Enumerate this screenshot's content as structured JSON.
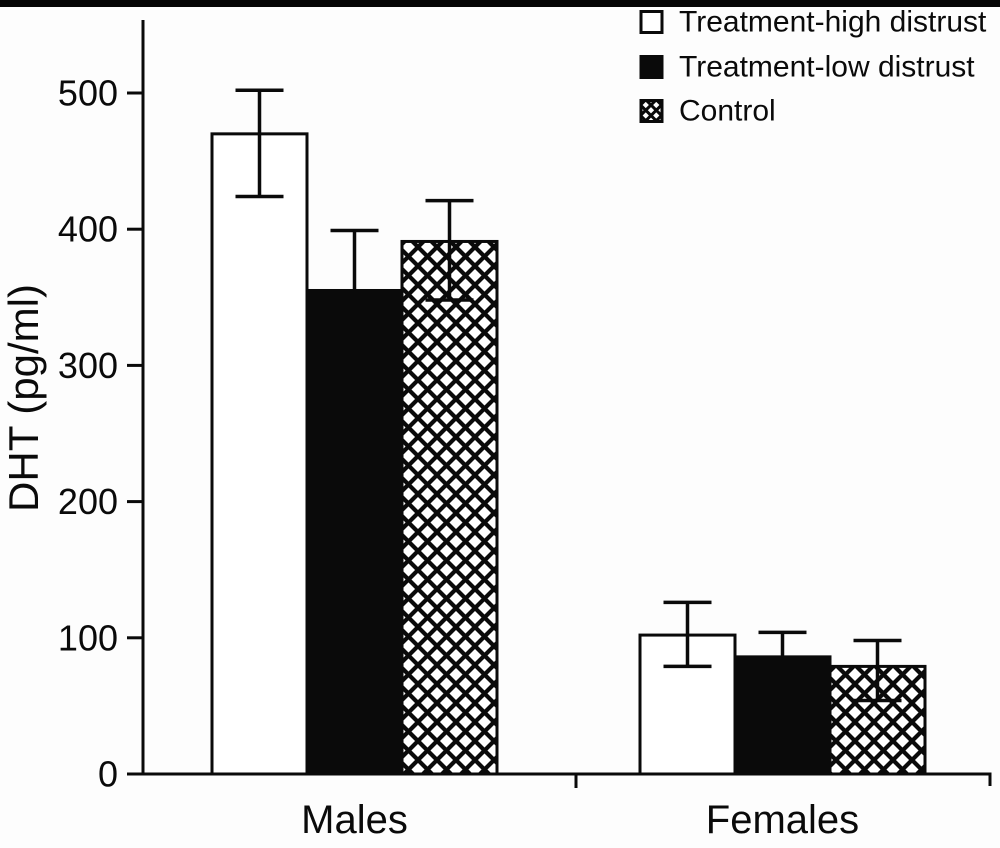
{
  "colors": {
    "ink": "#0a0a0a",
    "paper": "#ffffff"
  },
  "chart_data": {
    "type": "bar",
    "title": "",
    "xlabel": "",
    "ylabel": "DHT (pg/ml)",
    "categories": [
      "Males",
      "Females"
    ],
    "y_ticks": [
      0,
      100,
      200,
      300,
      400,
      500
    ],
    "ylim": [
      0,
      550
    ],
    "grid": false,
    "legend_position": "top-right",
    "series": [
      {
        "name": "Treatment-high distrust",
        "fill": "open",
        "values": [
          470,
          102
        ],
        "err_upper": [
          502,
          126
        ],
        "err_lower": [
          424,
          79
        ]
      },
      {
        "name": "Treatment-low distrust",
        "fill": "solid",
        "values": [
          355,
          86
        ],
        "err_upper": [
          399,
          104
        ],
        "err_lower": [
          null,
          null
        ]
      },
      {
        "name": "Control",
        "fill": "crosshatch",
        "values": [
          391,
          79
        ],
        "err_upper": [
          421,
          98
        ],
        "err_lower": [
          348,
          54
        ]
      }
    ]
  }
}
